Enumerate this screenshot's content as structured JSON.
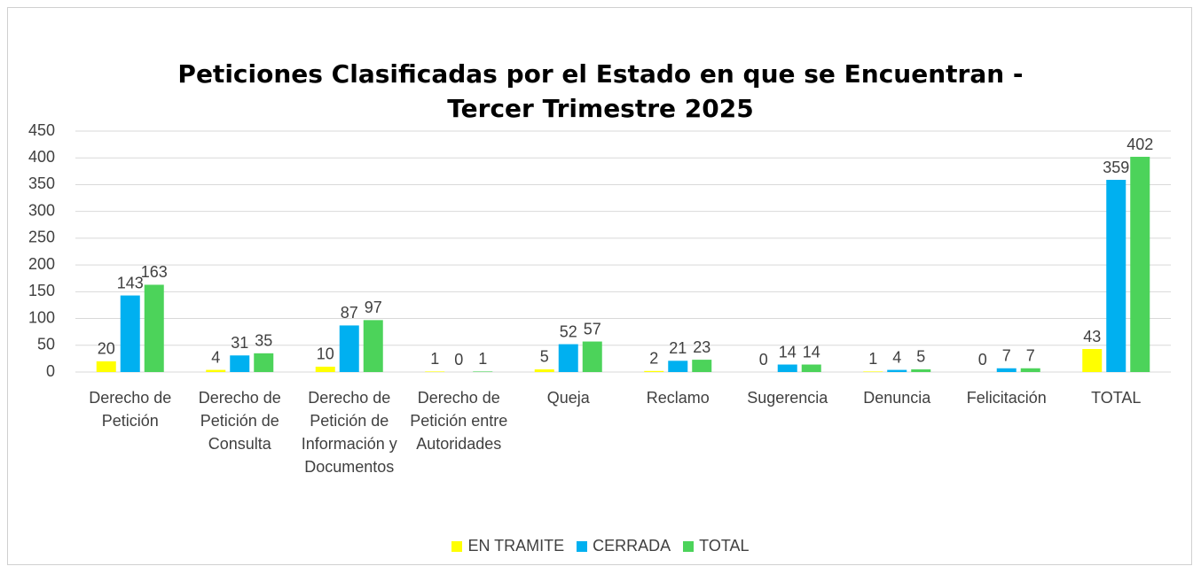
{
  "chart_data": {
    "type": "bar",
    "title": "Peticiones Clasificadas por el Estado en que se Encuentran - Tercer Trimestre 2025",
    "categories": [
      "Derecho de Petición",
      "Derecho de Petición de Consulta",
      "Derecho de Petición de Información y Documentos",
      "Derecho de Petición entre Autoridades",
      "Queja",
      "Reclamo",
      "Sugerencia",
      "Denuncia",
      "Felicitación",
      "TOTAL"
    ],
    "series": [
      {
        "name": "EN TRAMITE",
        "color": "#ffff00",
        "values": [
          20,
          4,
          10,
          1,
          5,
          2,
          0,
          1,
          0,
          43
        ]
      },
      {
        "name": "CERRADA",
        "color": "#00b0f0",
        "values": [
          143,
          31,
          87,
          0,
          52,
          21,
          14,
          4,
          7,
          359
        ]
      },
      {
        "name": "TOTAL",
        "color": "#4cd35a",
        "values": [
          163,
          35,
          97,
          1,
          57,
          23,
          14,
          5,
          7,
          402
        ]
      }
    ],
    "ylim": [
      0,
      450
    ],
    "yticks": [
      0,
      50,
      100,
      150,
      200,
      250,
      300,
      350,
      400,
      450
    ],
    "grid": true,
    "legend": "bottom"
  }
}
